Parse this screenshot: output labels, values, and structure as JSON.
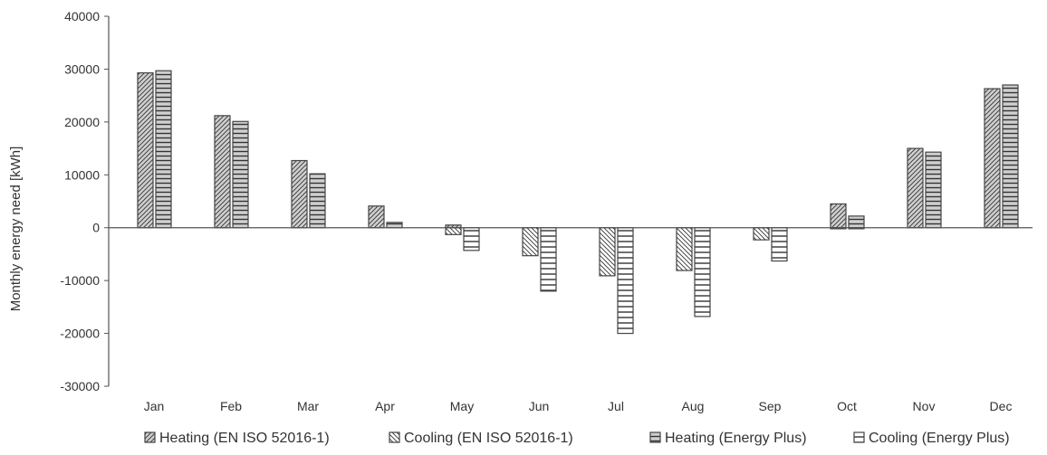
{
  "chart_data": {
    "type": "bar",
    "title": "",
    "xlabel": "",
    "ylabel": "Monthly energy need [kWh]",
    "ylim": [
      -30000,
      40000
    ],
    "yticks": [
      40000,
      30000,
      20000,
      10000,
      0,
      -10000,
      -20000,
      -30000
    ],
    "ytick_labels": [
      "40000",
      "30000",
      "20000",
      "10000",
      "0",
      "-10000",
      "-20000",
      "-30000"
    ],
    "grid": false,
    "legend_position": "bottom",
    "categories": [
      "Jan",
      "Feb",
      "Mar",
      "Apr",
      "May",
      "Jun",
      "Jul",
      "Aug",
      "Sep",
      "Oct",
      "Nov",
      "Dec"
    ],
    "series": [
      {
        "name": "Heating (EN ISO 52016-1)",
        "pattern": "diagonal-hatch-gray",
        "values": [
          29300,
          21200,
          12700,
          4100,
          500,
          0,
          0,
          0,
          0,
          4500,
          15000,
          26300
        ]
      },
      {
        "name": "Cooling (EN ISO 52016-1)",
        "pattern": "diagonal-hatch-white",
        "values": [
          0,
          0,
          0,
          0,
          -1300,
          -5300,
          -9100,
          -8100,
          -2300,
          -200,
          0,
          0
        ]
      },
      {
        "name": "Heating (Energy Plus)",
        "pattern": "horizontal-lines-gray",
        "values": [
          29700,
          20100,
          10200,
          1000,
          0,
          0,
          0,
          0,
          0,
          2200,
          14300,
          27000
        ]
      },
      {
        "name": "Cooling (Energy Plus)",
        "pattern": "horizontal-lines-white",
        "values": [
          0,
          0,
          0,
          0,
          -4300,
          -12000,
          -20000,
          -16800,
          -6300,
          -200,
          0,
          0
        ]
      }
    ],
    "colors": {
      "axis": "#555555",
      "bar_stroke": "#444444",
      "gray_fill": "#cfcfcf",
      "white_fill": "#ffffff",
      "text": "#333333"
    }
  }
}
